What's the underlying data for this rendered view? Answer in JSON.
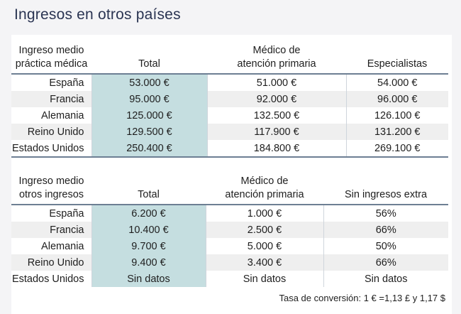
{
  "title": "Ingresos en otros países",
  "table1": {
    "headers": [
      "Ingreso medio\npráctica médica",
      "Total",
      "Médico de\natención primaria",
      "Especialistas"
    ],
    "rows": [
      [
        "España",
        "53.000 €",
        "51.000 €",
        "54.000 €"
      ],
      [
        "Francia",
        "95.000 €",
        "92.000 €",
        "96.000 €"
      ],
      [
        "Alemania",
        "125.000 €",
        "132.500 €",
        "126.100 €"
      ],
      [
        "Reino Unido",
        "129.500 €",
        "117.900 €",
        "131.200 €"
      ],
      [
        "Estados Unidos",
        "250.400 €",
        "184.800 €",
        "269.100 €"
      ]
    ]
  },
  "table2": {
    "headers": [
      "Ingreso medio\notros ingresos",
      "Total",
      "Médico de\natención primaria",
      "Sin ingresos extra"
    ],
    "rows": [
      [
        "España",
        "6.200 €",
        "1.000 €",
        "56%"
      ],
      [
        "Francia",
        "10.400 €",
        "2.500 €",
        "66%"
      ],
      [
        "Alemania",
        "9.700 €",
        "5.000 €",
        "50%"
      ],
      [
        "Reino Unido",
        "9.400 €",
        "3.400 €",
        "66%"
      ],
      [
        "Estados Unidos",
        "Sin datos",
        "Sin datos",
        "Sin datos"
      ]
    ]
  },
  "note": "Tasa de conversión: 1 € =1,13 £ y 1,17 $",
  "colors": {
    "title": "#2a3452",
    "highlight": "#c5dee0",
    "rule": "#6d7f93",
    "stripe": "#efefef"
  }
}
